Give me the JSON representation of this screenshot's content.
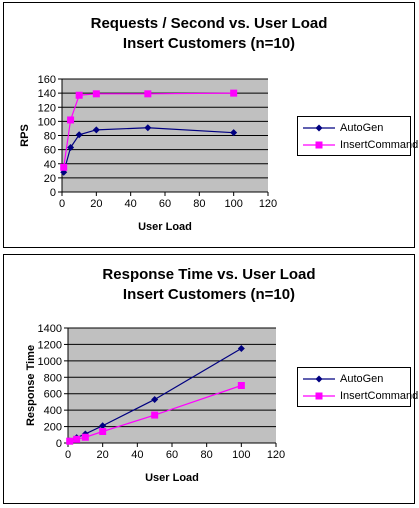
{
  "chart_data": [
    {
      "type": "line",
      "title": "Requests / Second  vs.  User Load",
      "subtitle": "Insert Customers (n=10)",
      "xlabel": "User Load",
      "ylabel": "RPS",
      "xlim": [
        0,
        120
      ],
      "ylim": [
        0,
        160
      ],
      "xticks": [
        "0",
        "20",
        "40",
        "60",
        "80",
        "100",
        "120"
      ],
      "yticks": [
        "0",
        "20",
        "40",
        "60",
        "80",
        "100",
        "120",
        "140",
        "160"
      ],
      "grid": true,
      "legend_position": "right",
      "series": [
        {
          "name": "AutoGen",
          "color": "#000080",
          "marker": "diamond",
          "x": [
            1,
            5,
            10,
            20,
            50,
            100
          ],
          "y": [
            28,
            63,
            81,
            88,
            91,
            84
          ]
        },
        {
          "name": "InsertCommand",
          "color": "#ff00ff",
          "marker": "square",
          "x": [
            1,
            5,
            10,
            20,
            50,
            100
          ],
          "y": [
            35,
            102,
            137,
            139,
            139,
            140
          ]
        }
      ]
    },
    {
      "type": "line",
      "title": "Response Time  vs.  User Load",
      "subtitle": "Insert Customers (n=10)",
      "xlabel": "User Load",
      "ylabel": "Response Time",
      "xlim": [
        0,
        120
      ],
      "ylim": [
        0,
        1400
      ],
      "xticks": [
        "0",
        "20",
        "40",
        "60",
        "80",
        "100",
        "120"
      ],
      "yticks": [
        "0",
        "200",
        "400",
        "600",
        "800",
        "1000",
        "1200",
        "1400"
      ],
      "grid": true,
      "legend_position": "right",
      "series": [
        {
          "name": "AutoGen",
          "color": "#000080",
          "marker": "diamond",
          "x": [
            1,
            5,
            10,
            20,
            50,
            100
          ],
          "y": [
            25,
            65,
            110,
            210,
            530,
            1150
          ]
        },
        {
          "name": "InsertCommand",
          "color": "#ff00ff",
          "marker": "square",
          "x": [
            1,
            5,
            10,
            20,
            50,
            100
          ],
          "y": [
            22,
            45,
            70,
            140,
            340,
            700
          ]
        }
      ]
    }
  ]
}
